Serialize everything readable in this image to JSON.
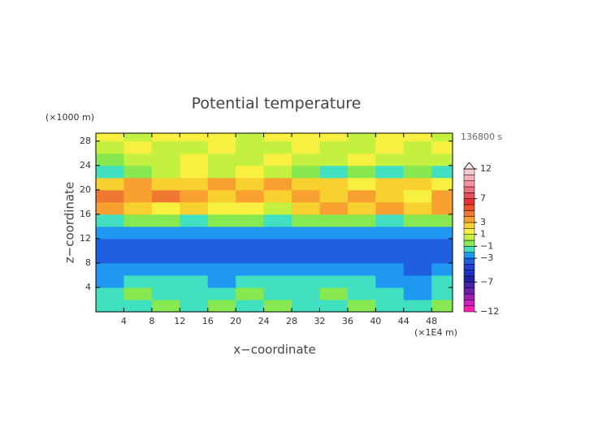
{
  "chart_data": {
    "type": "heatmap",
    "title": "Potential temperature",
    "x_label": "x−coordinate",
    "y_label": "z−coordinate",
    "x_unit": "(×1E4 m)",
    "y_unit": "(×1000 m)",
    "time_label": "136800 s",
    "x": [
      2,
      6,
      10,
      14,
      18,
      22,
      26,
      30,
      34,
      38,
      42,
      46,
      50
    ],
    "z": [
      1,
      3,
      5,
      7,
      9,
      11,
      13,
      15,
      17,
      19,
      21,
      23,
      25,
      27,
      29
    ],
    "values": [
      [
        -1.5,
        -1.5,
        -0.5,
        -1.5,
        -0.5,
        -1.5,
        -0.5,
        -1.5,
        -1.5,
        -0.5,
        -1.5,
        -1.5,
        -0.5
      ],
      [
        -1.5,
        -0.5,
        -1.5,
        -1.5,
        -1.5,
        -0.5,
        -1.5,
        -1.5,
        -0.5,
        -1.5,
        -1.5,
        -2.5,
        -1.5
      ],
      [
        -2.5,
        -1.5,
        -1.5,
        -1.5,
        -2.5,
        -1.5,
        -1.5,
        -1.5,
        -1.5,
        -1.5,
        -2.5,
        -2.5,
        -1.5
      ],
      [
        -2.5,
        -2.5,
        -2.5,
        -2.5,
        -2.5,
        -2.5,
        -2.5,
        -2.5,
        -2.5,
        -2.5,
        -2.5,
        -3.5,
        -2.5
      ],
      [
        -3.5,
        -3.5,
        -3.5,
        -3.5,
        -3.5,
        -3.5,
        -3.5,
        -3.5,
        -3.5,
        -3.5,
        -3.5,
        -3.5,
        -3.5
      ],
      [
        -3.5,
        -3.5,
        -3.5,
        -3.5,
        -3.5,
        -3.5,
        -3.5,
        -3.5,
        -3.5,
        -3.5,
        -3.5,
        -3.5,
        -3.5
      ],
      [
        -2.5,
        -2.5,
        -2.5,
        -2.5,
        -2.5,
        -2.5,
        -2.5,
        -2.5,
        -2.5,
        -2.5,
        -2.5,
        -2.5,
        -2.5
      ],
      [
        -1.5,
        -0.5,
        -0.5,
        -1.5,
        -0.5,
        -0.5,
        -1.5,
        -0.5,
        -0.5,
        -0.5,
        -1.5,
        -0.5,
        -0.5
      ],
      [
        3.5,
        2.5,
        1.5,
        2.5,
        1.5,
        1.5,
        0.5,
        2.5,
        3.5,
        2.5,
        3.5,
        2.5,
        3.5
      ],
      [
        4.5,
        3.5,
        4.5,
        3.5,
        2.5,
        3.5,
        2.5,
        3.5,
        2.5,
        3.5,
        2.5,
        1.5,
        3.5
      ],
      [
        2.5,
        3.5,
        2.5,
        2.5,
        3.5,
        2.5,
        3.5,
        2.5,
        2.5,
        1.5,
        2.5,
        2.5,
        1.5
      ],
      [
        -1.5,
        -0.5,
        0.5,
        1.5,
        0.5,
        1.5,
        0.5,
        -0.5,
        -1.5,
        -0.5,
        -1.5,
        -0.5,
        -1.5
      ],
      [
        -0.5,
        0.5,
        0.5,
        1.5,
        0.5,
        0.5,
        1.5,
        0.5,
        0.5,
        1.5,
        0.5,
        0.5,
        0.5
      ],
      [
        0.5,
        1.5,
        0.5,
        0.5,
        1.5,
        0.5,
        0.5,
        1.5,
        0.5,
        0.5,
        1.5,
        0.5,
        1.5
      ],
      [
        1.5,
        0.5,
        1.5,
        1.5,
        1.5,
        0.5,
        1.5,
        1.5,
        1.5,
        0.5,
        1.5,
        1.5,
        0.5
      ]
    ],
    "xlim": [
      0,
      51
    ],
    "ylim": [
      0,
      29.3
    ],
    "xticks": [
      4,
      8,
      12,
      16,
      20,
      24,
      28,
      32,
      36,
      40,
      44,
      48
    ],
    "yticks": [
      4,
      8,
      12,
      16,
      20,
      24,
      28
    ],
    "levels": [
      -12,
      -11,
      -10,
      -9,
      -8,
      -7,
      -6,
      -5,
      -4,
      -3,
      -2,
      -1,
      0,
      1,
      2,
      3,
      4,
      5,
      6,
      7,
      8,
      9,
      10,
      11,
      12
    ],
    "colors": [
      "#ff20b0",
      "#d020c0",
      "#a020b0",
      "#7020a8",
      "#4820b0",
      "#2020a0",
      "#2030c0",
      "#2040d8",
      "#2060e0",
      "#1e98f0",
      "#40e0c0",
      "#88e850",
      "#c4f040",
      "#f8f040",
      "#f8d030",
      "#f8a030",
      "#f07830",
      "#f05028",
      "#e83030",
      "#e85060",
      "#f07080",
      "#f890a0",
      "#f8b0b8",
      "#f8c8d0"
    ],
    "colorbar_ticks": [
      {
        "value": 12,
        "label": "12"
      },
      {
        "value": 7,
        "label": "7"
      },
      {
        "value": 3,
        "label": "3"
      },
      {
        "value": 1,
        "label": "1"
      },
      {
        "value": -1,
        "label": "−1"
      },
      {
        "value": -3,
        "label": "−3"
      },
      {
        "value": -7,
        "label": "−7"
      },
      {
        "value": -12,
        "label": "−12"
      }
    ]
  }
}
